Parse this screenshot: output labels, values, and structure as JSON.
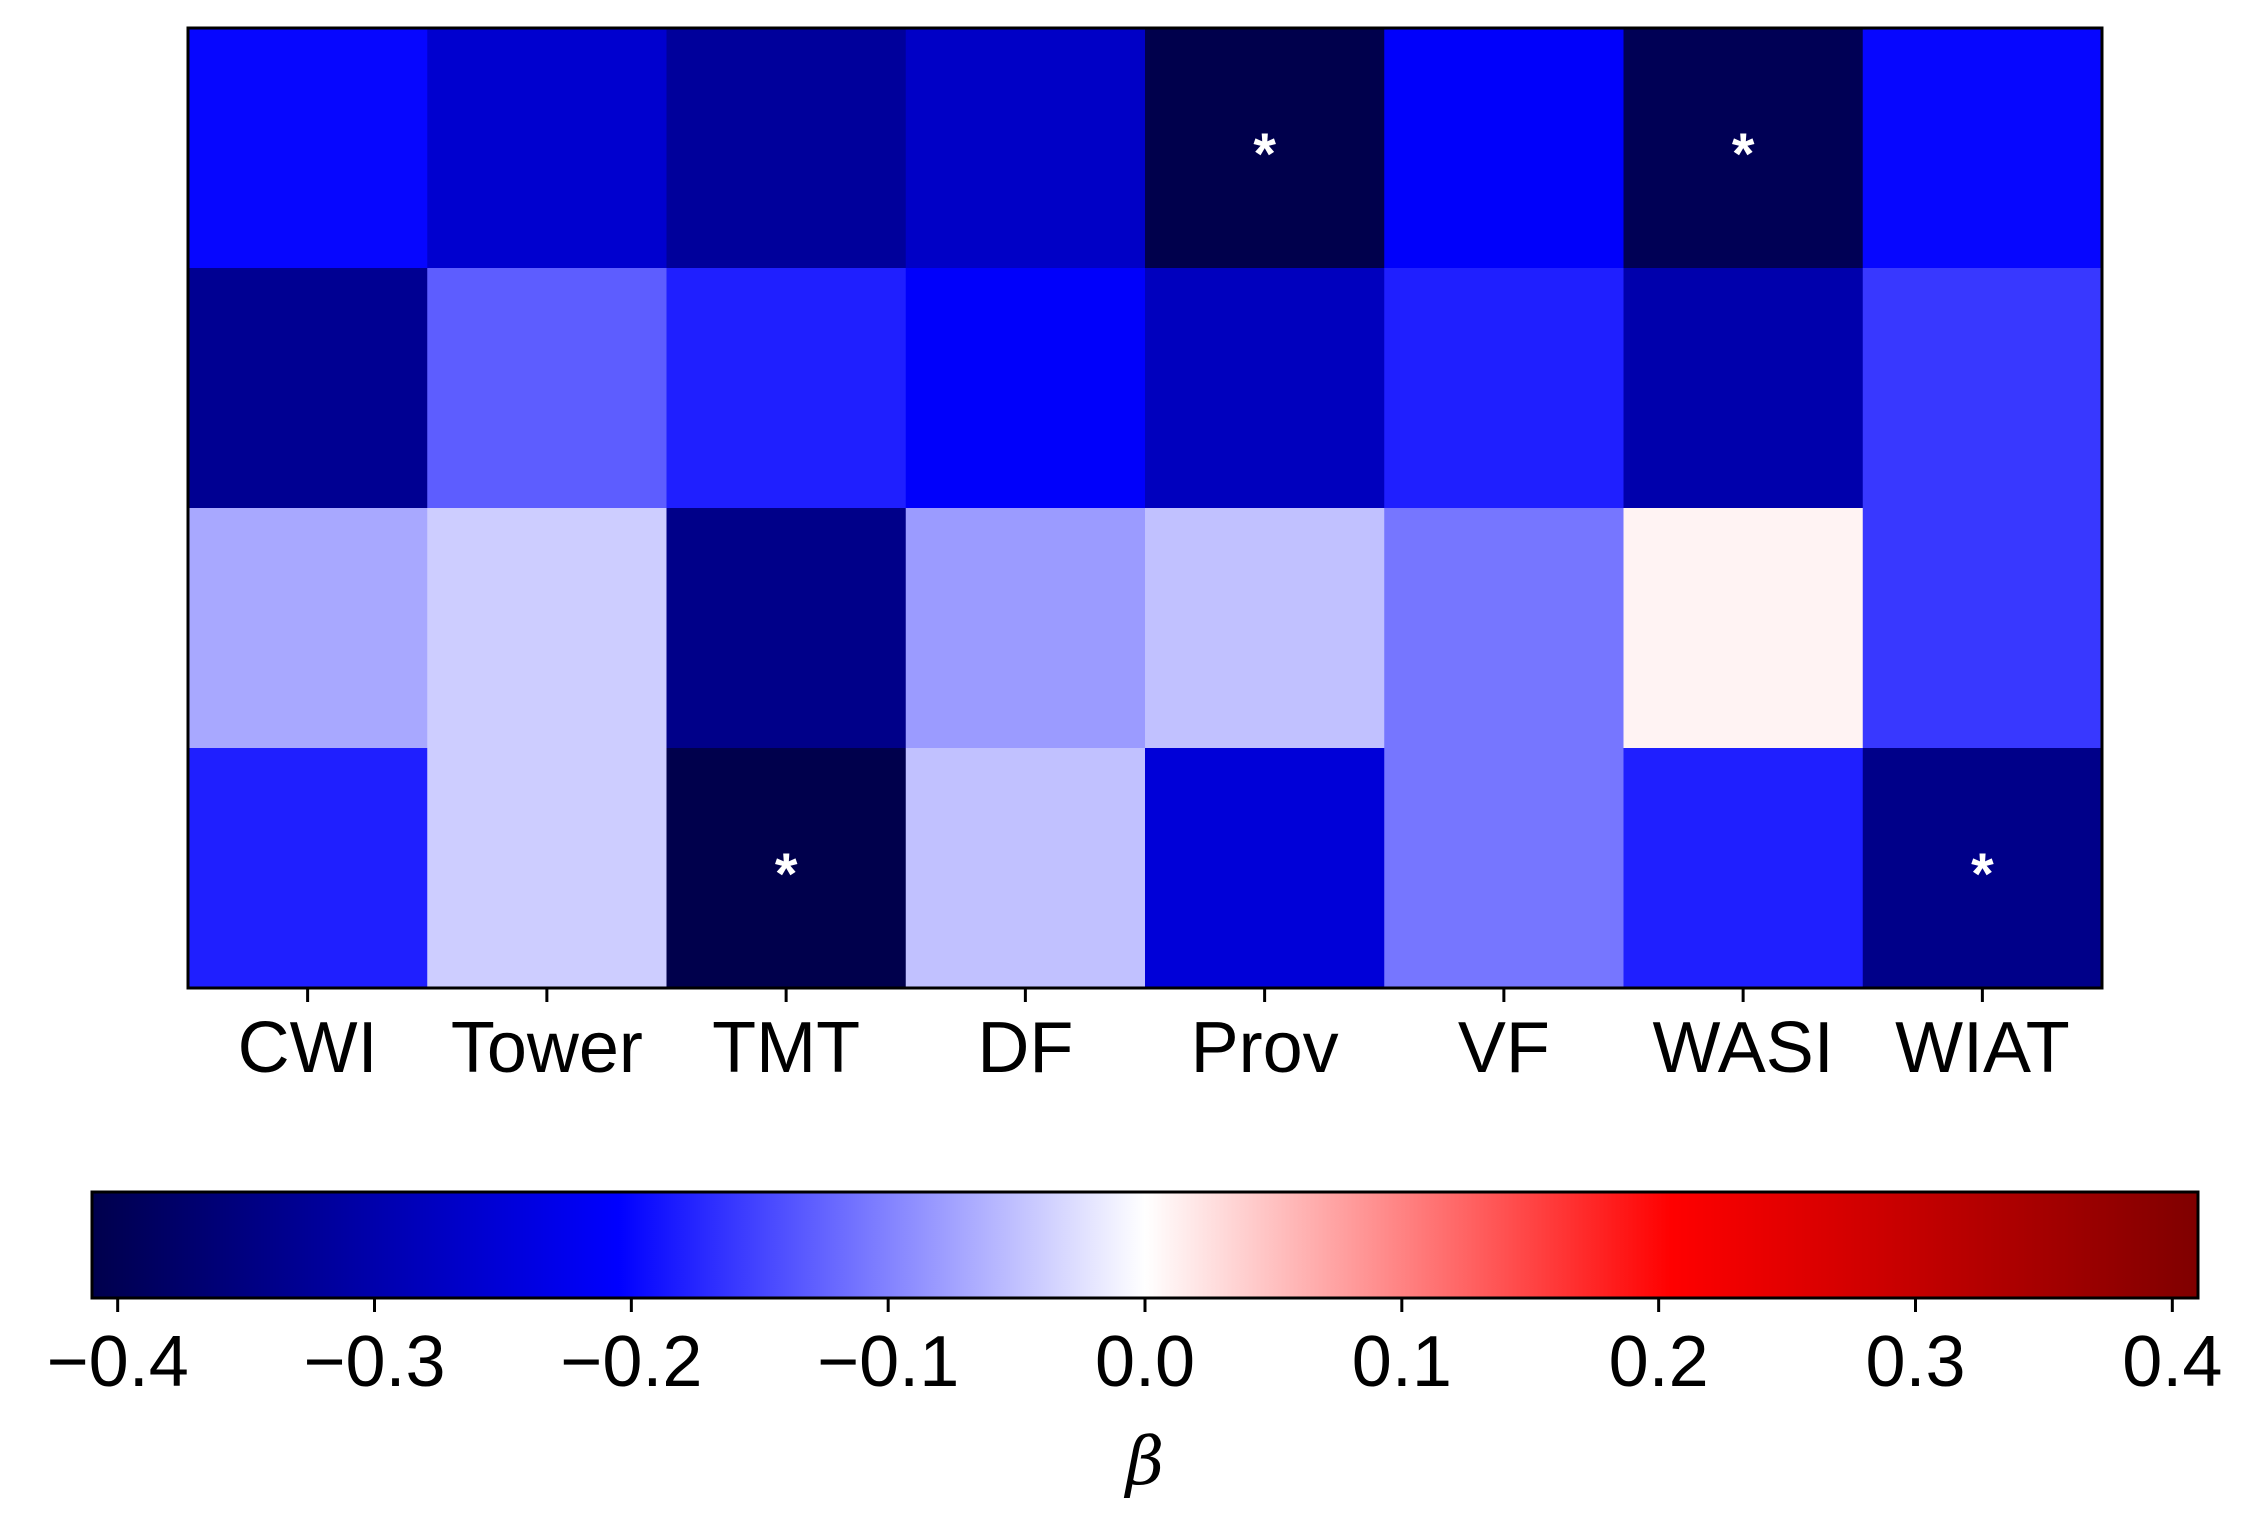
{
  "chart_data": {
    "type": "heatmap",
    "title": "",
    "xlabel": "",
    "ylabel": "",
    "categories": [
      "CWI",
      "Tower",
      "TMT",
      "DF",
      "Prov",
      "VF",
      "WASI",
      "WIAT"
    ],
    "rows": 4,
    "values": [
      [
        -0.2,
        -0.26,
        -0.32,
        -0.27,
        -0.41,
        -0.21,
        -0.4,
        -0.2
      ],
      [
        -0.33,
        -0.13,
        -0.18,
        -0.21,
        -0.28,
        -0.18,
        -0.3,
        -0.16
      ],
      [
        -0.07,
        -0.04,
        -0.34,
        -0.08,
        -0.05,
        -0.11,
        0.01,
        -0.16
      ],
      [
        -0.18,
        -0.04,
        -0.42,
        -0.05,
        -0.25,
        -0.11,
        -0.18,
        -0.34
      ]
    ],
    "significance_marker": "*",
    "significant": [
      [
        false,
        false,
        false,
        false,
        true,
        false,
        true,
        false
      ],
      [
        false,
        false,
        false,
        false,
        false,
        false,
        false,
        false
      ],
      [
        false,
        false,
        false,
        false,
        false,
        false,
        false,
        false
      ],
      [
        false,
        false,
        true,
        false,
        false,
        false,
        false,
        true
      ]
    ],
    "colorbar": {
      "label": "β",
      "colormap": "seismic",
      "range": [
        -0.41,
        0.41
      ],
      "ticks": [
        -0.4,
        -0.3,
        -0.2,
        -0.1,
        0.0,
        0.1,
        0.2,
        0.3,
        0.4
      ],
      "tick_labels": [
        "−0.4",
        "−0.3",
        "−0.2",
        "−0.1",
        "0.0",
        "0.1",
        "0.2",
        "0.3",
        "0.4"
      ],
      "colors": [
        "#00004c",
        "#0000ff",
        "#ffffff",
        "#ff0000",
        "#7f0000"
      ]
    },
    "grid": false,
    "legend": "none"
  }
}
